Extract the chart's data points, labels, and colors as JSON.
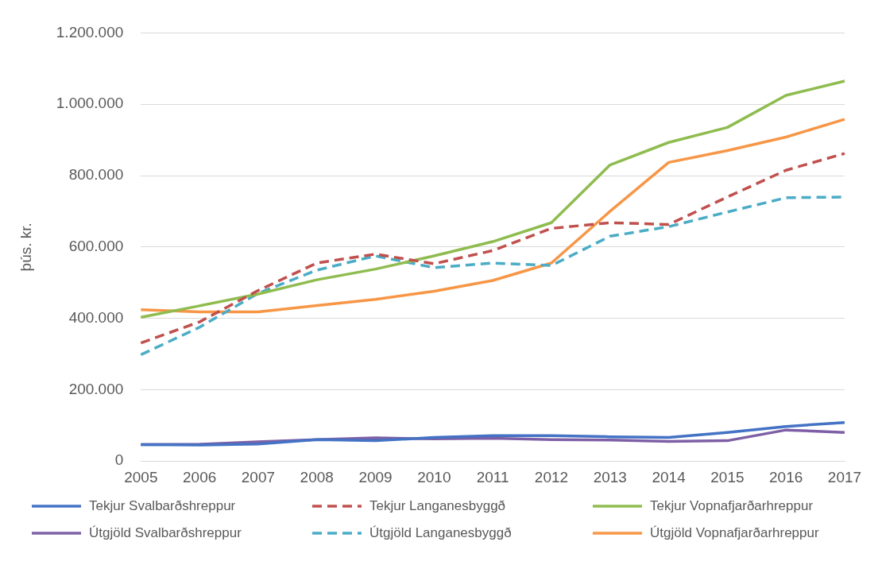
{
  "chart_data": {
    "type": "line",
    "ylabel": "þús. kr.",
    "categories": [
      "2005",
      "2006",
      "2007",
      "2008",
      "2009",
      "2010",
      "2011",
      "2012",
      "2013",
      "2014",
      "2015",
      "2016",
      "2017"
    ],
    "ylim": [
      0,
      1200000
    ],
    "yticks": [
      0,
      {
        "value": 200000,
        "label": "200.000"
      },
      {
        "value": 400000,
        "label": "400.000"
      },
      {
        "value": 600000,
        "label": "600.000"
      },
      {
        "value": 800000,
        "label": "800.000"
      },
      {
        "value": 1000000,
        "label": "1.000.000"
      },
      {
        "value": 1200000,
        "label": "1.200.000"
      }
    ],
    "grid": "y",
    "legend": "bottom",
    "marker": "none",
    "series": [
      {
        "name": "Tekjur Svalbarðshreppur",
        "color": "#4472c4",
        "line_style": "solid",
        "values": [
          46000,
          45000,
          48000,
          60000,
          57000,
          66000,
          71000,
          71000,
          68000,
          66000,
          80000,
          97000,
          108000
        ]
      },
      {
        "name": "Tekjur Langanesbyggð",
        "color": "#c0504d",
        "line_style": "dashed",
        "values": [
          331000,
          390000,
          478000,
          555000,
          580000,
          553000,
          590000,
          652000,
          668000,
          663000,
          740000,
          815000,
          862000
        ]
      },
      {
        "name": "Tekjur Vopnafjarðarhreppur",
        "color": "#8fbc4f",
        "line_style": "solid",
        "values": [
          403000,
          435000,
          468000,
          508000,
          538000,
          575000,
          615000,
          668000,
          830000,
          893000,
          935000,
          1025000,
          1065000
        ]
      },
      {
        "name": "Útgjöld Svalbarðshreppur",
        "color": "#7e5fa6",
        "line_style": "solid",
        "values": [
          46000,
          47000,
          54000,
          60000,
          65000,
          62000,
          64000,
          60000,
          59000,
          55000,
          57000,
          87000,
          80000
        ]
      },
      {
        "name": "Útgjöld Langanesbyggð",
        "color": "#4bacc6",
        "line_style": "dashed",
        "values": [
          298000,
          375000,
          470000,
          535000,
          575000,
          542000,
          555000,
          548000,
          630000,
          657000,
          698000,
          738000,
          740000
        ]
      },
      {
        "name": "Útgjöld Vopnafjarðarhreppur",
        "color": "#f79646",
        "line_style": "solid",
        "values": [
          424000,
          418000,
          418000,
          436000,
          453000,
          476000,
          506000,
          555000,
          700000,
          837000,
          870000,
          908000,
          958000
        ]
      }
    ]
  }
}
